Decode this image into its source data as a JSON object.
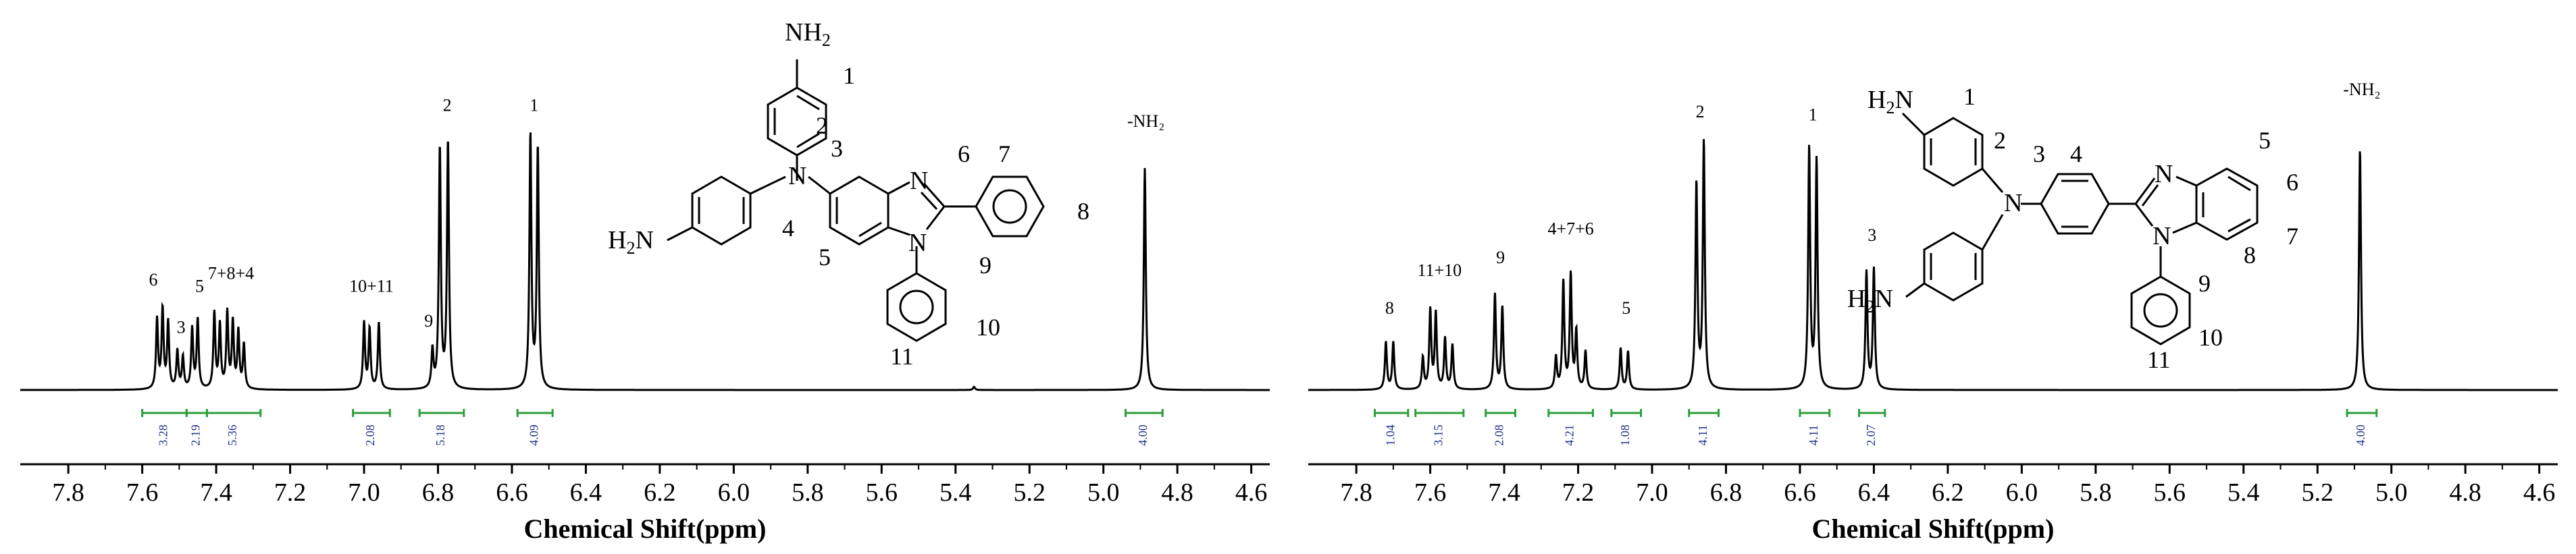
{
  "chart_data": [
    {
      "type": "line",
      "xlabel": "Chemical Shift(ppm)",
      "ylabel": "",
      "title": "",
      "xlim": [
        4.55,
        7.93
      ],
      "x_reversed": true,
      "ticks": [
        "7.8",
        "7.6",
        "7.4",
        "7.2",
        "7.0",
        "6.8",
        "6.6",
        "6.4",
        "6.2",
        "6.0",
        "5.8",
        "5.6",
        "5.4",
        "5.2",
        "5.0",
        "4.8",
        "4.6"
      ],
      "peaks": [
        {
          "x": 7.56,
          "h": 0.22
        },
        {
          "x": 7.545,
          "h": 0.25
        },
        {
          "x": 7.53,
          "h": 0.21
        },
        {
          "x": 7.505,
          "h": 0.12
        },
        {
          "x": 7.49,
          "h": 0.1
        },
        {
          "x": 7.465,
          "h": 0.19
        },
        {
          "x": 7.45,
          "h": 0.22
        },
        {
          "x": 7.405,
          "h": 0.24
        },
        {
          "x": 7.39,
          "h": 0.2
        },
        {
          "x": 7.37,
          "h": 0.24
        },
        {
          "x": 7.355,
          "h": 0.21
        },
        {
          "x": 7.34,
          "h": 0.18
        },
        {
          "x": 7.325,
          "h": 0.14
        },
        {
          "x": 7.0,
          "h": 0.21
        },
        {
          "x": 6.985,
          "h": 0.19
        },
        {
          "x": 6.96,
          "h": 0.21
        },
        {
          "x": 6.815,
          "h": 0.12
        },
        {
          "x": 6.795,
          "h": 0.76
        },
        {
          "x": 6.773,
          "h": 0.78
        },
        {
          "x": 6.55,
          "h": 0.8
        },
        {
          "x": 6.53,
          "h": 0.76
        },
        {
          "x": 4.888,
          "h": 0.7
        },
        {
          "x": 5.35,
          "h": 0.01
        }
      ],
      "peak_labels": [
        {
          "text": "6",
          "x": 7.57,
          "h": 0.33
        },
        {
          "text": "3",
          "x": 7.495,
          "h": 0.18
        },
        {
          "text": "5",
          "x": 7.445,
          "h": 0.31
        },
        {
          "text": "7+8+4",
          "x": 7.36,
          "h": 0.35
        },
        {
          "text": "10+11",
          "x": 6.98,
          "h": 0.31
        },
        {
          "text": "9",
          "x": 6.825,
          "h": 0.2
        },
        {
          "text": "2",
          "x": 6.775,
          "h": 0.88
        },
        {
          "text": "1",
          "x": 6.54,
          "h": 0.88
        },
        {
          "text": "-NH₂",
          "x": 4.885,
          "h": 0.83
        }
      ],
      "integrals": [
        {
          "from": 7.6,
          "to": 7.48,
          "value": "3.28"
        },
        {
          "from": 7.48,
          "to": 7.425,
          "value": "2.19"
        },
        {
          "from": 7.425,
          "to": 7.28,
          "value": "5.36"
        },
        {
          "from": 7.03,
          "to": 6.93,
          "value": "2.08"
        },
        {
          "from": 6.85,
          "to": 6.73,
          "value": "5.18"
        },
        {
          "from": 6.585,
          "to": 6.49,
          "value": "4.09"
        },
        {
          "from": 4.94,
          "to": 4.84,
          "value": "4.00"
        }
      ]
    },
    {
      "type": "line",
      "xlabel": "Chemical Shift(ppm)",
      "ylabel": "",
      "title": "",
      "xlim": [
        4.55,
        7.93
      ],
      "x_reversed": true,
      "ticks": [
        "7.8",
        "7.6",
        "7.4",
        "7.2",
        "7.0",
        "6.8",
        "6.6",
        "6.4",
        "6.2",
        "6.0",
        "5.8",
        "5.6",
        "5.4",
        "5.2",
        "5.0",
        "4.8",
        "4.6"
      ],
      "peaks": [
        {
          "x": 7.72,
          "h": 0.15
        },
        {
          "x": 7.7,
          "h": 0.15
        },
        {
          "x": 7.62,
          "h": 0.1
        },
        {
          "x": 7.6,
          "h": 0.25
        },
        {
          "x": 7.585,
          "h": 0.24
        },
        {
          "x": 7.56,
          "h": 0.16
        },
        {
          "x": 7.54,
          "h": 0.14
        },
        {
          "x": 7.425,
          "h": 0.3
        },
        {
          "x": 7.405,
          "h": 0.26
        },
        {
          "x": 7.26,
          "h": 0.1
        },
        {
          "x": 7.24,
          "h": 0.34
        },
        {
          "x": 7.22,
          "h": 0.36
        },
        {
          "x": 7.205,
          "h": 0.18
        },
        {
          "x": 7.18,
          "h": 0.12
        },
        {
          "x": 7.085,
          "h": 0.13
        },
        {
          "x": 7.065,
          "h": 0.12
        },
        {
          "x": 6.88,
          "h": 0.65
        },
        {
          "x": 6.86,
          "h": 0.78
        },
        {
          "x": 6.575,
          "h": 0.76
        },
        {
          "x": 6.555,
          "h": 0.72
        },
        {
          "x": 6.42,
          "h": 0.37
        },
        {
          "x": 6.4,
          "h": 0.38
        },
        {
          "x": 5.085,
          "h": 0.76
        }
      ],
      "peak_labels": [
        {
          "text": "8",
          "x": 7.71,
          "h": 0.24
        },
        {
          "text": "11+10",
          "x": 7.575,
          "h": 0.36
        },
        {
          "text": "9",
          "x": 7.41,
          "h": 0.4
        },
        {
          "text": "4+7+6",
          "x": 7.22,
          "h": 0.49
        },
        {
          "text": "5",
          "x": 7.07,
          "h": 0.24
        },
        {
          "text": "2",
          "x": 6.87,
          "h": 0.86
        },
        {
          "text": "1",
          "x": 6.565,
          "h": 0.85
        },
        {
          "text": "3",
          "x": 6.405,
          "h": 0.47
        },
        {
          "text": "-NH₂",
          "x": 5.08,
          "h": 0.93
        }
      ],
      "integrals": [
        {
          "from": 7.75,
          "to": 7.66,
          "value": "1.04"
        },
        {
          "from": 7.64,
          "to": 7.51,
          "value": "3.15"
        },
        {
          "from": 7.45,
          "to": 7.37,
          "value": "2.08"
        },
        {
          "from": 7.28,
          "to": 7.16,
          "value": "4.21"
        },
        {
          "from": 7.11,
          "to": 7.03,
          "value": "1.08"
        },
        {
          "from": 6.9,
          "to": 6.82,
          "value": "4.11"
        },
        {
          "from": 6.6,
          "to": 6.52,
          "value": "4.11"
        },
        {
          "from": 6.44,
          "to": 6.37,
          "value": "2.07"
        },
        {
          "from": 5.12,
          "to": 5.04,
          "value": "4.00"
        }
      ]
    }
  ],
  "structure_labels": {
    "left": {
      "nh2_top": "NH",
      "nh2_left": "H",
      "n_amine": "N",
      "n_ring1": "N",
      "n_ring2": "N",
      "h_sub": "2",
      "n_sub": "2",
      "positions": [
        "1",
        "2",
        "3",
        "4",
        "5",
        "6",
        "7",
        "8",
        "9",
        "10",
        "11"
      ]
    },
    "right": {
      "nh2_top": "H",
      "nh2_left": "H",
      "n_amine": "N",
      "n_ring1": "N",
      "n_ring2": "N",
      "h_sub": "2",
      "n_sub": "2",
      "positions": [
        "1",
        "2",
        "3",
        "4",
        "5",
        "6",
        "7",
        "8",
        "9",
        "10",
        "11"
      ]
    }
  },
  "colors": {
    "spectrum": "#000000",
    "integral_bar": "#2e9e3a",
    "integral_text": "#1f2d8a",
    "axis": "#000000"
  }
}
